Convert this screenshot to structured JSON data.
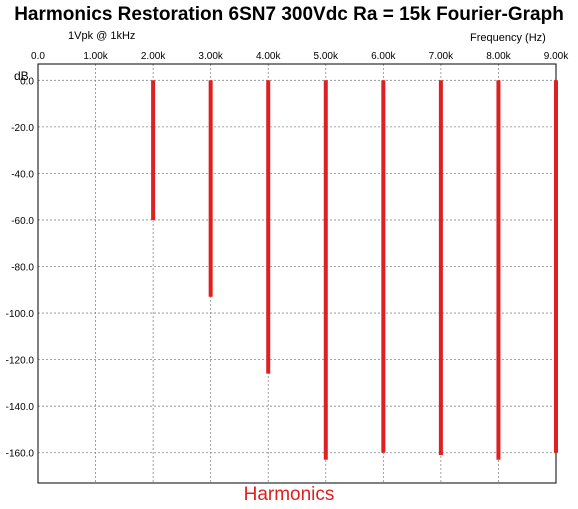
{
  "chart_data": {
    "type": "bar",
    "title": "Harmonics Restoration 6SN7 300Vdc Ra = 15k Fourier-Graph",
    "subtitle": "1Vpk @ 1kHz",
    "x_axis_label": "Frequency  (Hz)",
    "ylabel": "dB",
    "xlabel": "Harmonics",
    "x_position": "top",
    "xlim": [
      0,
      9000
    ],
    "ylim": [
      -173,
      7
    ],
    "grid": true,
    "x_ticks": [
      0,
      1000,
      2000,
      3000,
      4000,
      5000,
      6000,
      7000,
      8000,
      9000
    ],
    "x_tick_labels": [
      "0.0",
      "1.00k",
      "2.00k",
      "3.00k",
      "4.00k",
      "5.00k",
      "6.00k",
      "7.00k",
      "8.00k",
      "9.00k"
    ],
    "y_ticks": [
      0,
      -20,
      -40,
      -60,
      -80,
      -100,
      -120,
      -140,
      -160
    ],
    "y_tick_labels": [
      "0.0",
      "-20.0",
      "-40.0",
      "-60.0",
      "-80.0",
      "-100.0",
      "-120.0",
      "-140.0",
      "-160.0"
    ],
    "x": [
      2000,
      3000,
      4000,
      5000,
      6000,
      7000,
      8000,
      9000
    ],
    "values": [
      -60,
      -93,
      -126,
      -163,
      -160,
      -161,
      -163,
      -160
    ],
    "colors": {
      "bars": "#e02020",
      "grid": "#888888",
      "axis": "#000000",
      "xlabel": "#e02020"
    }
  }
}
